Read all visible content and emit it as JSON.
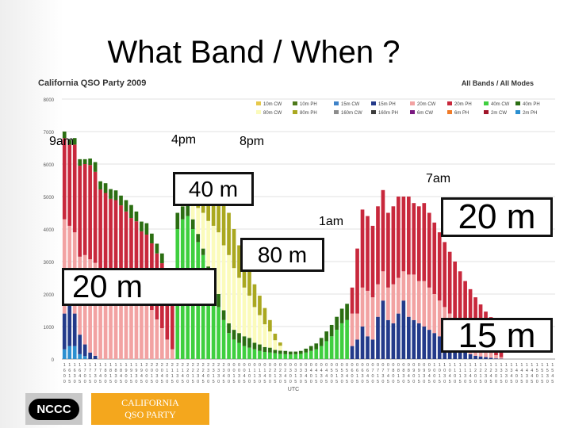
{
  "slide": {
    "title": "What Band / When ?"
  },
  "chart_data": {
    "type": "stacked-bar",
    "title": "California QSO Party 2009",
    "subtitle": "All Bands / All Modes",
    "xlabel": "UTC",
    "ylim": [
      0,
      8000
    ],
    "yticks": [
      "0",
      "1000",
      "2000",
      "3000",
      "4000",
      "5000",
      "6000",
      "7000",
      "8000"
    ],
    "legend": [
      {
        "name": "10m CW",
        "color": "#e6c84a"
      },
      {
        "name": "10m PH",
        "color": "#4e7a1b"
      },
      {
        "name": "15m CW",
        "color": "#3e82c8"
      },
      {
        "name": "15m PH",
        "color": "#233a8a"
      },
      {
        "name": "20m CW",
        "color": "#f2a2a2"
      },
      {
        "name": "20m PH",
        "color": "#c8283c"
      },
      {
        "name": "40m CW",
        "color": "#3fcf3f"
      },
      {
        "name": "40m PH",
        "color": "#2b6e12"
      },
      {
        "name": "80m CW",
        "color": "#fbfbbb"
      },
      {
        "name": "80m PH",
        "color": "#aaa820"
      },
      {
        "name": "160m CW",
        "color": "#8c8c8c"
      },
      {
        "name": "160m PH",
        "color": "#3c3c3c"
      },
      {
        "name": "6m CW",
        "color": "#7a1880"
      },
      {
        "name": "6m PH",
        "color": "#f07b28"
      },
      {
        "name": "2m CW",
        "color": "#a01428"
      },
      {
        "name": "2m PH",
        "color": "#2b8fd0"
      }
    ],
    "x": [
      "1600",
      "1615",
      "1630",
      "1645",
      "1700",
      "1715",
      "1730",
      "1745",
      "1800",
      "1815",
      "1830",
      "1845",
      "1900",
      "1915",
      "1930",
      "1945",
      "2000",
      "2015",
      "2030",
      "2045",
      "2100",
      "2115",
      "2130",
      "2145",
      "2200",
      "2215",
      "2230",
      "2245",
      "2300",
      "2315",
      "2330",
      "2345",
      "0000",
      "0015",
      "0030",
      "0045",
      "0100",
      "0115",
      "0130",
      "0145",
      "0200",
      "0215",
      "0230",
      "0245",
      "0300",
      "0315",
      "0330",
      "0345",
      "0400",
      "0415",
      "0430",
      "0445",
      "0500",
      "0515",
      "0530",
      "0545",
      "0600",
      "0615",
      "0630",
      "0645",
      "0700",
      "0715",
      "0730",
      "0745",
      "0800",
      "0815",
      "0830",
      "0845",
      "0900",
      "0915",
      "0930",
      "0945",
      "1000",
      "1015",
      "1030",
      "1045",
      "1100",
      "1115",
      "1130",
      "1145",
      "1200",
      "1215",
      "1230",
      "1245",
      "1300",
      "1315",
      "1330",
      "1345",
      "1400",
      "1415",
      "1430",
      "1445",
      "1500",
      "1515",
      "1530",
      "1545"
    ],
    "stacks": {
      "2m PH": [
        300,
        400,
        400,
        150,
        90,
        0,
        0,
        0,
        0,
        0,
        0,
        0,
        0,
        0,
        0,
        0,
        0,
        0,
        0,
        0,
        0,
        0,
        0,
        0,
        0,
        0,
        0,
        0,
        0,
        0,
        0,
        0,
        0,
        0,
        0,
        0,
        0,
        0,
        0,
        0,
        0,
        0,
        0,
        0,
        0,
        0,
        0,
        0,
        0,
        0,
        0,
        0,
        0,
        0,
        0,
        0,
        0,
        0,
        0,
        0,
        0,
        0,
        0,
        0,
        0,
        0,
        0,
        0,
        0,
        0,
        0,
        0,
        0,
        0,
        0,
        0,
        0,
        0,
        0,
        0,
        0,
        0,
        0,
        0,
        0,
        0,
        0,
        0,
        0,
        0,
        0,
        0,
        0,
        0,
        0,
        0
      ],
      "15m PH": [
        1100,
        1300,
        1000,
        600,
        360,
        200,
        100,
        0,
        0,
        0,
        0,
        0,
        0,
        0,
        0,
        0,
        0,
        0,
        0,
        0,
        0,
        0,
        0,
        0,
        0,
        0,
        0,
        0,
        0,
        0,
        0,
        0,
        0,
        0,
        0,
        0,
        0,
        0,
        0,
        0,
        0,
        0,
        0,
        0,
        0,
        0,
        0,
        0,
        0,
        0,
        0,
        0,
        0,
        0,
        0,
        0,
        0,
        0,
        0,
        0,
        0,
        0,
        0,
        0,
        0,
        0,
        0,
        0,
        0,
        0,
        0,
        0,
        0,
        0,
        0,
        0,
        0,
        0,
        0,
        0,
        0,
        0,
        0,
        0,
        0,
        0,
        0,
        0,
        0,
        0,
        0,
        0,
        0,
        0,
        0,
        0
      ],
      "20m CW": [
        2900,
        2400,
        2500,
        2400,
        2750,
        2870,
        2860,
        2620,
        2660,
        2530,
        2440,
        2290,
        2190,
        2040,
        1880,
        1730,
        1640,
        1510,
        1220,
        950,
        600,
        300,
        0,
        0,
        0,
        0,
        0,
        0,
        0,
        0,
        0,
        0,
        0,
        0,
        0,
        0,
        0,
        0,
        0,
        0,
        0,
        0,
        0,
        0,
        0,
        0,
        0,
        0,
        0,
        0,
        0,
        0,
        0,
        0,
        0,
        0,
        0,
        0,
        0,
        0,
        0,
        0,
        0,
        0,
        0,
        0,
        0,
        0,
        0,
        0,
        0,
        0,
        0,
        0,
        0,
        0,
        0,
        0,
        0,
        0,
        0,
        0,
        0,
        0,
        0,
        0,
        0,
        0,
        0,
        0,
        0,
        0,
        0,
        0,
        0,
        0
      ],
      "20m PH": [
        2500,
        2500,
        2700,
        2800,
        2800,
        2900,
        2800,
        2600,
        2450,
        2400,
        2450,
        2440,
        2350,
        2300,
        2360,
        2200,
        2190,
        2050,
        2030,
        2000,
        1800,
        1400,
        0,
        0,
        0,
        0,
        0,
        0,
        0,
        0,
        0,
        0,
        0,
        0,
        0,
        0,
        0,
        0,
        0,
        0,
        0,
        0,
        0,
        0,
        0,
        0,
        0,
        0,
        0,
        0,
        0,
        0,
        0,
        0,
        0,
        0,
        0,
        0,
        0,
        0,
        0,
        0,
        0,
        0,
        0,
        0,
        0,
        0,
        0,
        0,
        0,
        0,
        0,
        0,
        0,
        0,
        0,
        0,
        0,
        0,
        0,
        0,
        0,
        0,
        0,
        0,
        0,
        0,
        0,
        0,
        0,
        0,
        0,
        0,
        0,
        0
      ],
      "40m CW": [
        0,
        0,
        0,
        0,
        0,
        0,
        0,
        0,
        0,
        0,
        0,
        0,
        0,
        0,
        0,
        0,
        0,
        0,
        0,
        0,
        0,
        0,
        4000,
        4300,
        4400,
        4000,
        3600,
        3200,
        2600,
        2100,
        1600,
        1200,
        800,
        600,
        500,
        400,
        350,
        300,
        250,
        220,
        200,
        180,
        160,
        150,
        140,
        150,
        160,
        200,
        250,
        300,
        400,
        550,
        700,
        900,
        1100,
        1200,
        0,
        0,
        0,
        0,
        0,
        0,
        0,
        0,
        0,
        0,
        0,
        0,
        0,
        0,
        0,
        0,
        0,
        0,
        0,
        0,
        0,
        0,
        0,
        0,
        0,
        0,
        0,
        0,
        0,
        0,
        0,
        0,
        0,
        0,
        0,
        0,
        0,
        0,
        0,
        0
      ],
      "40m PH": [
        200,
        150,
        200,
        200,
        150,
        200,
        300,
        250,
        300,
        300,
        300,
        300,
        350,
        400,
        300,
        300,
        350,
        300,
        300,
        300,
        250,
        200,
        500,
        400,
        350,
        300,
        250,
        200,
        250,
        300,
        400,
        300,
        300,
        300,
        300,
        300,
        300,
        200,
        200,
        150,
        150,
        100,
        100,
        100,
        90,
        80,
        90,
        120,
        150,
        180,
        250,
        300,
        350,
        400,
        450,
        500,
        0,
        0,
        0,
        0,
        0,
        0,
        0,
        0,
        0,
        0,
        0,
        0,
        0,
        0,
        0,
        0,
        0,
        0,
        0,
        0,
        0,
        0,
        0,
        0,
        0,
        0,
        0,
        0,
        0,
        0,
        0,
        0,
        0,
        0,
        0,
        0,
        0,
        0,
        0,
        0
      ],
      "80m CW": [
        0,
        0,
        0,
        0,
        0,
        0,
        0,
        0,
        0,
        0,
        0,
        0,
        0,
        0,
        0,
        0,
        0,
        0,
        0,
        0,
        0,
        0,
        0,
        200,
        400,
        600,
        800,
        1100,
        1400,
        1700,
        1900,
        2000,
        2100,
        1900,
        1700,
        1500,
        1300,
        1100,
        900,
        700,
        500,
        300,
        150,
        0,
        0,
        0,
        0,
        0,
        0,
        0,
        0,
        0,
        0,
        0,
        0,
        0,
        0,
        0,
        0,
        0,
        0,
        0,
        0,
        0,
        0,
        0,
        0,
        0,
        0,
        0,
        0,
        0,
        0,
        0,
        0,
        0,
        0,
        0,
        0,
        0,
        0,
        0,
        0,
        0,
        0,
        0,
        0,
        0,
        0,
        0,
        0,
        0,
        0,
        0,
        0,
        0
      ],
      "80m PH": [
        0,
        0,
        0,
        0,
        0,
        0,
        0,
        0,
        0,
        0,
        0,
        0,
        0,
        0,
        0,
        0,
        0,
        0,
        0,
        0,
        0,
        0,
        0,
        0,
        300,
        600,
        900,
        1200,
        1300,
        1400,
        1500,
        1400,
        1300,
        1200,
        1000,
        900,
        800,
        700,
        600,
        500,
        350,
        200,
        100,
        0,
        0,
        0,
        0,
        0,
        0,
        0,
        0,
        0,
        0,
        0,
        0,
        0,
        0,
        0,
        0,
        0,
        0,
        0,
        0,
        0,
        0,
        0,
        0,
        0,
        0,
        0,
        0,
        0,
        0,
        0,
        0,
        0,
        0,
        0,
        0,
        0,
        0,
        0,
        0,
        0,
        0,
        0,
        0,
        0,
        0,
        0,
        0,
        0,
        0,
        0,
        0,
        0,
        0,
        0
      ],
      "R15m PH": [
        0,
        0,
        0,
        0,
        0,
        0,
        0,
        0,
        0,
        0,
        0,
        0,
        0,
        0,
        0,
        0,
        0,
        0,
        0,
        0,
        0,
        0,
        0,
        0,
        0,
        0,
        0,
        0,
        0,
        0,
        0,
        0,
        0,
        0,
        0,
        0,
        0,
        0,
        0,
        0,
        0,
        0,
        0,
        0,
        0,
        0,
        0,
        0,
        0,
        0,
        0,
        0,
        0,
        0,
        0,
        0,
        400,
        600,
        1000,
        700,
        600,
        1300,
        1800,
        1200,
        1100,
        1400,
        1800,
        1300,
        1200,
        1100,
        1000,
        900,
        800,
        700,
        600,
        500,
        400,
        300,
        200,
        150,
        100,
        80,
        60,
        40,
        20,
        10,
        0,
        0,
        0,
        0,
        0,
        0,
        0,
        0,
        0,
        0
      ],
      "R20m CW": [
        0,
        0,
        0,
        0,
        0,
        0,
        0,
        0,
        0,
        0,
        0,
        0,
        0,
        0,
        0,
        0,
        0,
        0,
        0,
        0,
        0,
        0,
        0,
        0,
        0,
        0,
        0,
        0,
        0,
        0,
        0,
        0,
        0,
        0,
        0,
        0,
        0,
        0,
        0,
        0,
        0,
        0,
        0,
        0,
        0,
        0,
        0,
        0,
        0,
        0,
        0,
        0,
        0,
        0,
        0,
        0,
        1000,
        800,
        1200,
        1400,
        1300,
        1000,
        900,
        1000,
        1200,
        1100,
        900,
        1300,
        1400,
        1300,
        1400,
        1300,
        1200,
        1100,
        1000,
        900,
        800,
        700,
        600,
        500,
        400,
        300,
        200,
        150,
        100,
        50,
        0,
        0,
        0,
        0,
        0,
        0,
        0,
        0,
        0,
        0
      ],
      "R20m PH": [
        0,
        0,
        0,
        0,
        0,
        0,
        0,
        0,
        0,
        0,
        0,
        0,
        0,
        0,
        0,
        0,
        0,
        0,
        0,
        0,
        0,
        0,
        0,
        0,
        0,
        0,
        0,
        0,
        0,
        0,
        0,
        0,
        0,
        0,
        0,
        0,
        0,
        0,
        0,
        0,
        0,
        0,
        0,
        0,
        0,
        0,
        0,
        0,
        0,
        0,
        0,
        0,
        0,
        0,
        0,
        0,
        800,
        2000,
        2400,
        2300,
        2200,
        2400,
        2500,
        2300,
        2400,
        2500,
        2300,
        2400,
        2200,
        2300,
        2400,
        2300,
        2200,
        2100,
        2000,
        1900,
        1800,
        1700,
        1600,
        1500,
        1400,
        1300,
        1200,
        1100,
        1000,
        900,
        0,
        0,
        0,
        0,
        0,
        0,
        0,
        0,
        0,
        0
      ]
    }
  },
  "annotations": {
    "time_9am": "9am",
    "time_4pm": "4pm",
    "time_8pm": "8pm",
    "time_1am": "1am",
    "time_7am": "7am",
    "band_40m": "40 m",
    "band_80m": "80 m",
    "band_20m_left": "20 m",
    "band_20m_right": "20 m",
    "band_15m": "15 m"
  },
  "logos": {
    "nccc": "NCCC",
    "cqp_line1": "CALIFORNIA",
    "cqp_line2": "QSO PARTY"
  }
}
